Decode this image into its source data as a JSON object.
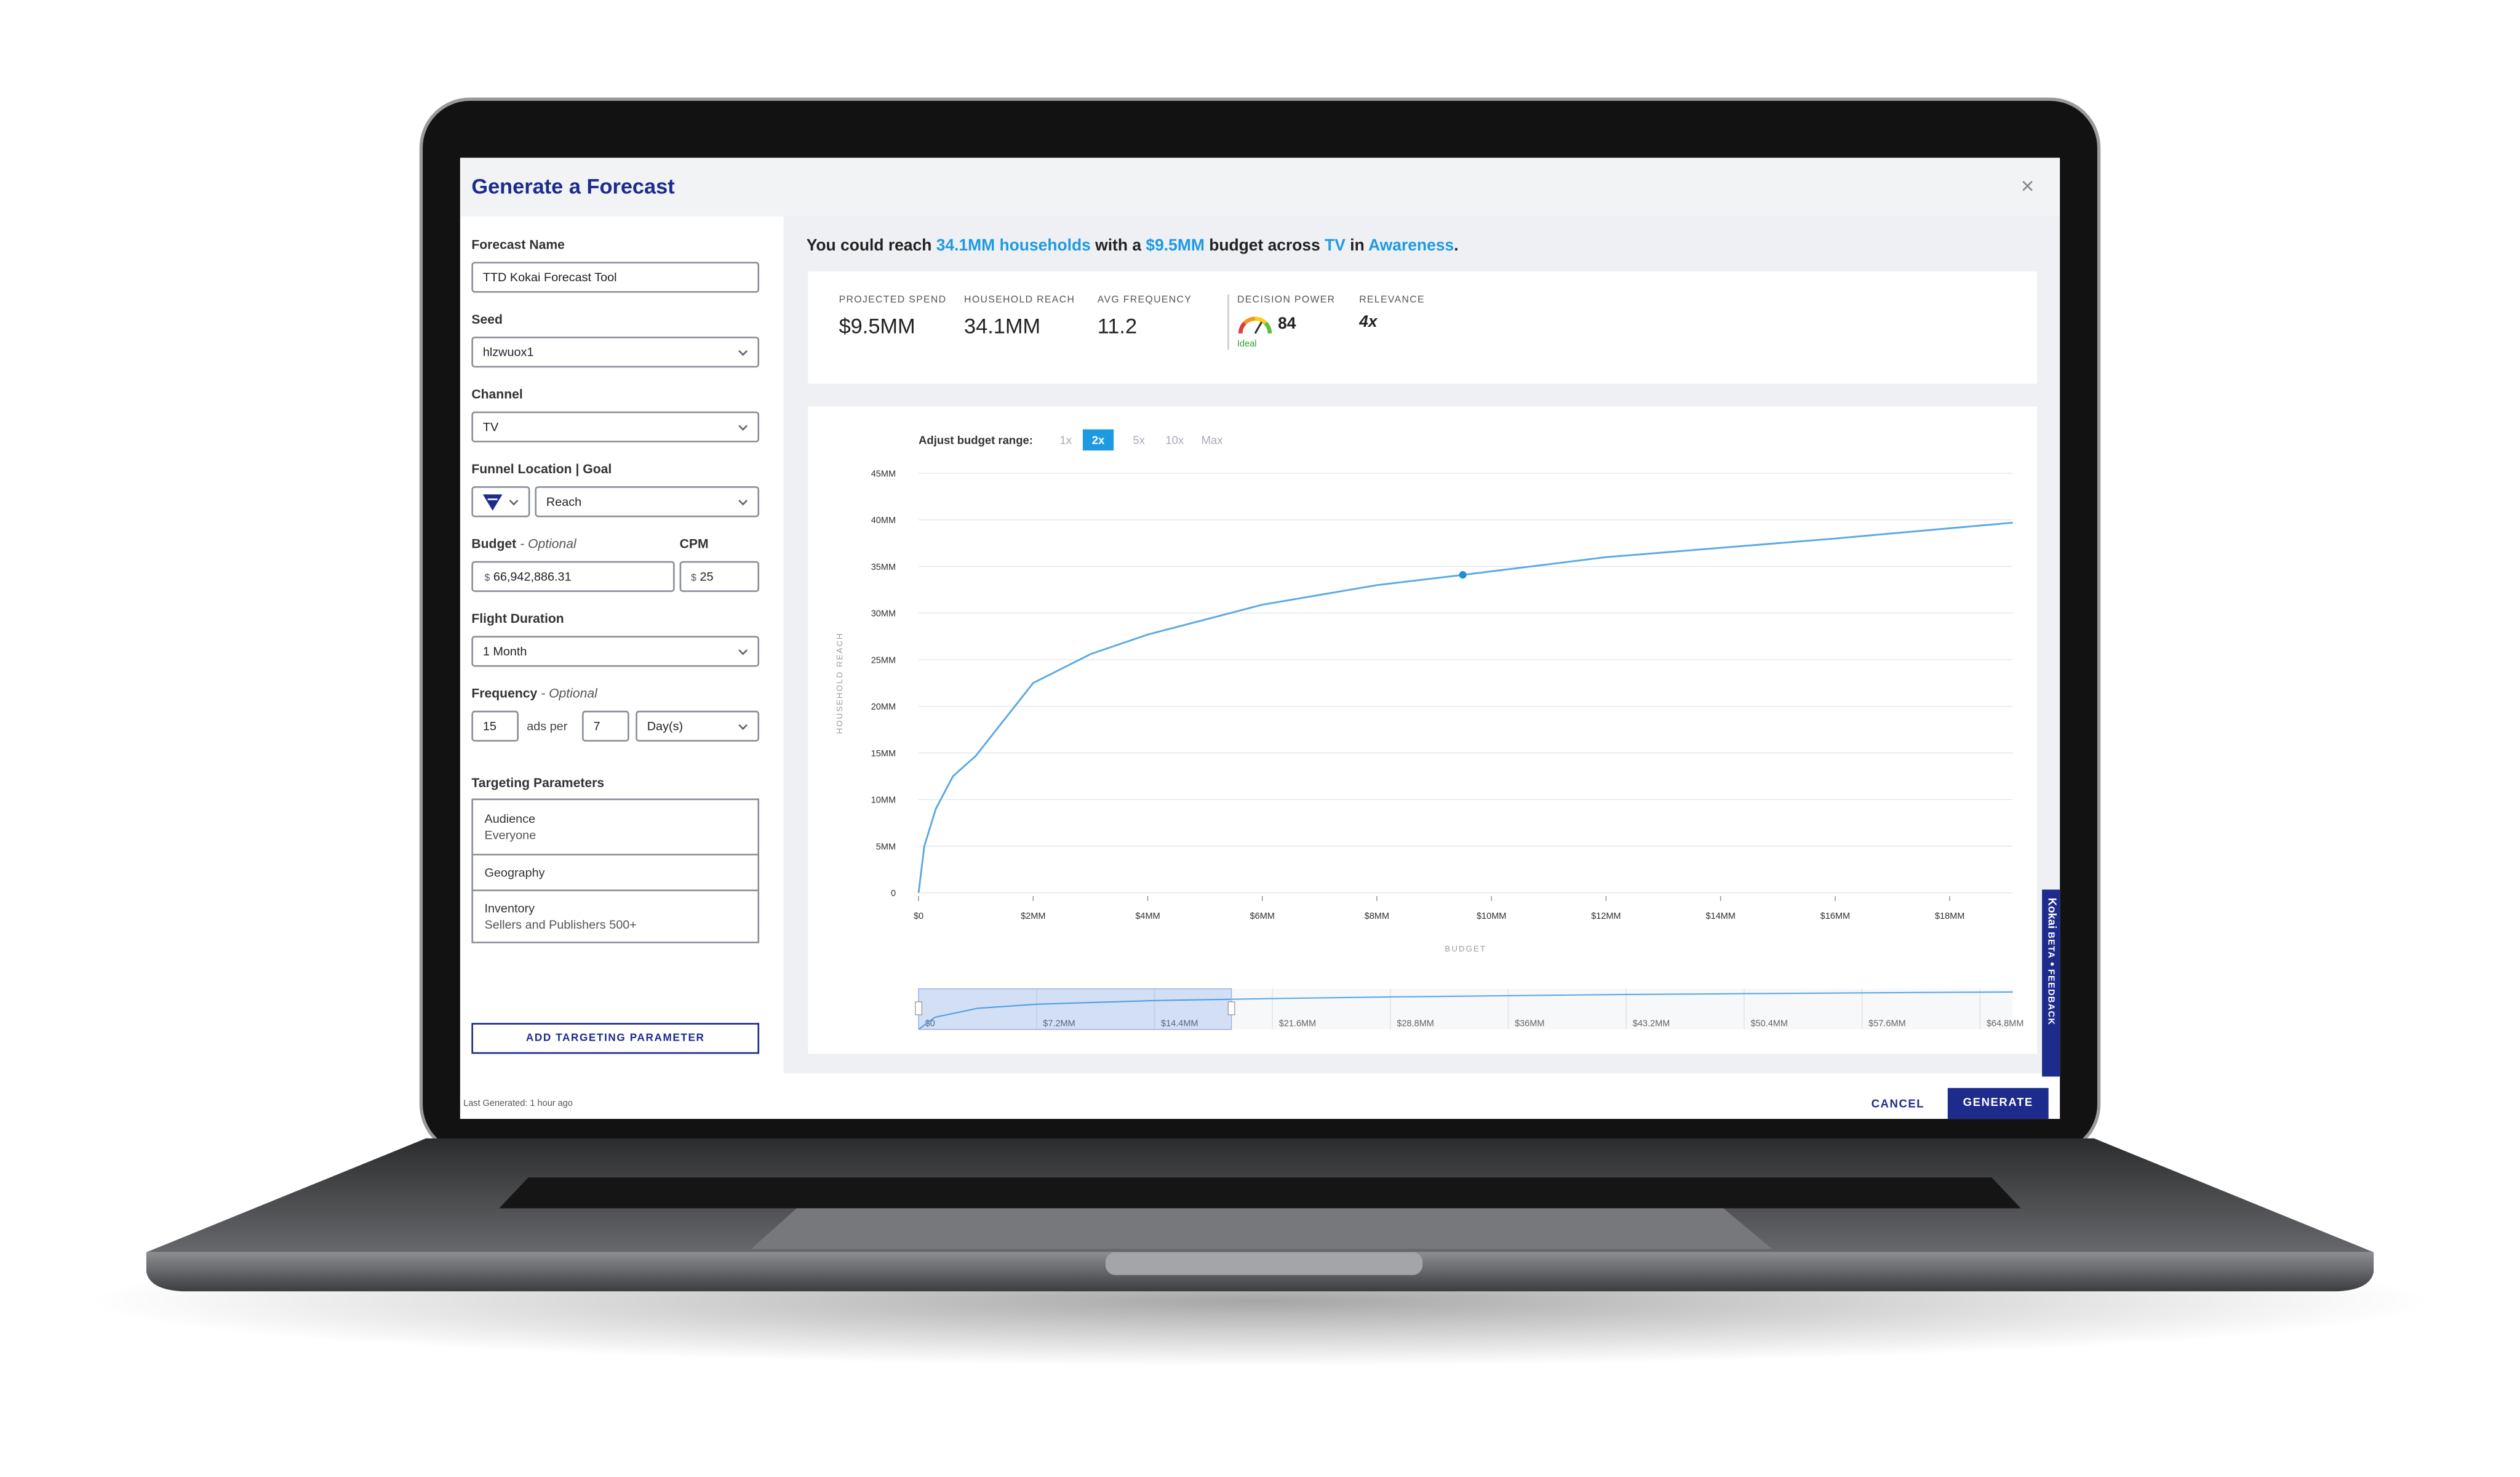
{
  "dialog": {
    "title": "Generate a Forecast"
  },
  "form": {
    "forecast_name": {
      "label": "Forecast Name",
      "value": "TTD Kokai Forecast Tool"
    },
    "seed": {
      "label": "Seed",
      "value": "hlzwuox1"
    },
    "channel": {
      "label": "Channel",
      "value": "TV"
    },
    "funnel": {
      "label": "Funnel Location | Goal",
      "value": "Reach"
    },
    "budget": {
      "label": "Budget",
      "note": "- Optional",
      "currency": "$",
      "value": "66,942,886.31"
    },
    "cpm": {
      "label": "CPM",
      "currency": "$",
      "value": "25"
    },
    "flight": {
      "label": "Flight Duration",
      "value": "1 Month"
    },
    "frequency": {
      "label": "Frequency",
      "note": "- Optional",
      "count": "15",
      "per_text": "ads per",
      "period": "7",
      "unit": "Day(s)"
    },
    "targeting": {
      "label": "Targeting Parameters",
      "items": [
        {
          "name": "Audience",
          "value": "Everyone"
        },
        {
          "name": "Geography"
        },
        {
          "name": "Inventory",
          "value": "Sellers and Publishers 500+"
        }
      ]
    },
    "add_button": "ADD TARGETING PARAMETER"
  },
  "summary": [
    "You could reach ",
    "34.1MM households",
    " with a ",
    "$9.5MM",
    " budget across ",
    "TV",
    " in ",
    "Awareness",
    "."
  ],
  "stats": [
    {
      "label": "PROJECTED SPEND",
      "value": "$9.5MM"
    },
    {
      "label": "HOUSEHOLD REACH",
      "value": "34.1MM"
    },
    {
      "label": "AVG FREQUENCY",
      "value": "11.2"
    },
    {
      "label": "DECISION POWER",
      "value": "84",
      "status": "Ideal"
    },
    {
      "label": "RELEVANCE",
      "value": "4x"
    }
  ],
  "chart": {
    "type": "line",
    "range_label": "Adjust budget range:",
    "range_options": [
      "1x",
      "2x",
      "5x",
      "10x",
      "Max"
    ],
    "range_selected": "2x",
    "ylabel": "HOUSEHOLD REACH",
    "xlabel": "BUDGET",
    "color": "#5aa9e6",
    "x": [
      0,
      0.1,
      0.3,
      0.6,
      1,
      2,
      3,
      4,
      6,
      8,
      9.5,
      12,
      14,
      16,
      18,
      19.1
    ],
    "y": [
      0,
      5,
      9,
      12.5,
      14.7,
      22.5,
      25.6,
      27.7,
      30.9,
      33,
      34.1,
      36,
      37,
      38,
      39.1,
      39.7
    ],
    "highlight": {
      "x": 9.5,
      "y": 34.1
    },
    "xlim": [
      0,
      19.1
    ],
    "ylim": [
      0,
      45
    ],
    "xticks": [
      {
        "value": 0,
        "label": "$0"
      },
      {
        "value": 2,
        "label": "$2MM"
      },
      {
        "value": 4,
        "label": "$4MM"
      },
      {
        "value": 6,
        "label": "$6MM"
      },
      {
        "value": 8,
        "label": "$8MM"
      },
      {
        "value": 10,
        "label": "$10MM"
      },
      {
        "value": 12,
        "label": "$12MM"
      },
      {
        "value": 14,
        "label": "$14MM"
      },
      {
        "value": 16,
        "label": "$16MM"
      },
      {
        "value": 18,
        "label": "$18MM"
      }
    ],
    "yticks": [
      0,
      {
        "value": 5,
        "label": "5MM"
      },
      {
        "value": 10,
        "label": "10MM"
      },
      {
        "value": 15,
        "label": "15MM"
      },
      {
        "value": 20,
        "label": "20MM"
      },
      {
        "value": 25,
        "label": "25MM"
      },
      {
        "value": 30,
        "label": "30MM"
      },
      {
        "value": 35,
        "label": "35MM"
      },
      {
        "value": 40,
        "label": "40MM"
      },
      {
        "value": 45,
        "label": "45MM"
      }
    ],
    "navigator": {
      "x": [
        0,
        1,
        3.6,
        7.2,
        14.4,
        21.6,
        28.8,
        36,
        43.2,
        50.4,
        57.6,
        66.8
      ],
      "y": [
        0,
        15,
        26,
        31,
        35.5,
        38,
        40,
        41.5,
        43,
        44,
        45,
        46
      ],
      "xlim": [
        0,
        66.8
      ],
      "ylim": [
        0,
        50
      ],
      "xticks": [
        {
          "value": 0,
          "label": "$0"
        },
        {
          "value": 7.2,
          "label": "$7.2MM"
        },
        {
          "value": 14.4,
          "label": "$14.4MM"
        },
        {
          "value": 21.6,
          "label": "$21.6MM"
        },
        {
          "value": 28.8,
          "label": "$28.8MM"
        },
        {
          "value": 36,
          "label": "$36MM"
        },
        {
          "value": 43.2,
          "label": "$43.2MM"
        },
        {
          "value": 50.4,
          "label": "$50.4MM"
        },
        {
          "value": 57.6,
          "label": "$57.6MM"
        },
        {
          "value": 64.8,
          "label": "$64.8MM"
        }
      ]
    }
  },
  "feedback_tab": {
    "brand": "Kokai",
    "badge": "BETA",
    "sep": "•",
    "action": "FEEDBACK"
  },
  "footer": {
    "last_generated": "Last Generated: 1 hour ago",
    "cancel": "CANCEL",
    "generate": "GENERATE"
  }
}
